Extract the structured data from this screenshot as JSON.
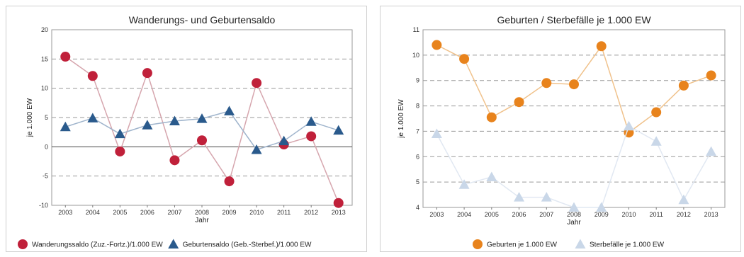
{
  "chart_data": [
    {
      "type": "line",
      "title": "Wanderungs- und Geburtensaldo",
      "xlabel": "Jahr",
      "ylabel": "je 1.000 EW",
      "ylim": [
        -10,
        20
      ],
      "yticks": [
        -10,
        -5,
        0,
        5,
        10,
        15,
        20
      ],
      "grid": "dashed horizontal",
      "legend_position": "bottom",
      "x": [
        "2003",
        "2004",
        "2005",
        "2006",
        "2007",
        "2008",
        "2009",
        "2010",
        "2011",
        "2012",
        "2013"
      ],
      "series": [
        {
          "name": "Wanderungssaldo (Zuz.-Fortz.)/1.000 EW",
          "marker": "circle",
          "color": "#c0203a",
          "line_color": "#d6a6ae",
          "values": [
            15.4,
            12.1,
            -0.8,
            12.6,
            -2.3,
            1.1,
            -5.9,
            10.9,
            0.4,
            1.8,
            -9.6
          ]
        },
        {
          "name": "Geburtensaldo (Geb.-Sterbef.)/1.000 EW",
          "marker": "triangle",
          "color": "#2a5a8c",
          "line_color": "#9fb4cc",
          "values": [
            3.4,
            4.9,
            2.2,
            3.7,
            4.4,
            4.8,
            6.1,
            -0.5,
            1.0,
            4.3,
            2.8
          ]
        }
      ]
    },
    {
      "type": "line",
      "title": "Geburten / Sterbefälle je 1.000 EW",
      "xlabel": "Jahr",
      "ylabel": "je 1.000 EW",
      "ylim": [
        4,
        11
      ],
      "yticks": [
        4,
        5,
        6,
        7,
        8,
        9,
        10,
        11
      ],
      "grid": "dashed horizontal",
      "legend_position": "bottom",
      "x": [
        "2003",
        "2004",
        "2005",
        "2006",
        "2007",
        "2008",
        "2009",
        "2010",
        "2011",
        "2012",
        "2013"
      ],
      "series": [
        {
          "name": "Geburten je 1.000 EW",
          "marker": "circle",
          "color": "#e8831c",
          "line_color": "#f0c28c",
          "values": [
            10.4,
            9.85,
            7.55,
            8.15,
            8.9,
            8.85,
            10.35,
            6.95,
            7.75,
            8.8,
            9.2
          ]
        },
        {
          "name": "Sterbefälle je 1.000 EW",
          "marker": "triangle",
          "color": "#c9d7e8",
          "line_color": "#e1e8f2",
          "values": [
            6.9,
            4.9,
            5.2,
            4.4,
            4.4,
            4.0,
            4.0,
            7.2,
            6.6,
            4.3,
            6.2
          ]
        }
      ]
    }
  ]
}
